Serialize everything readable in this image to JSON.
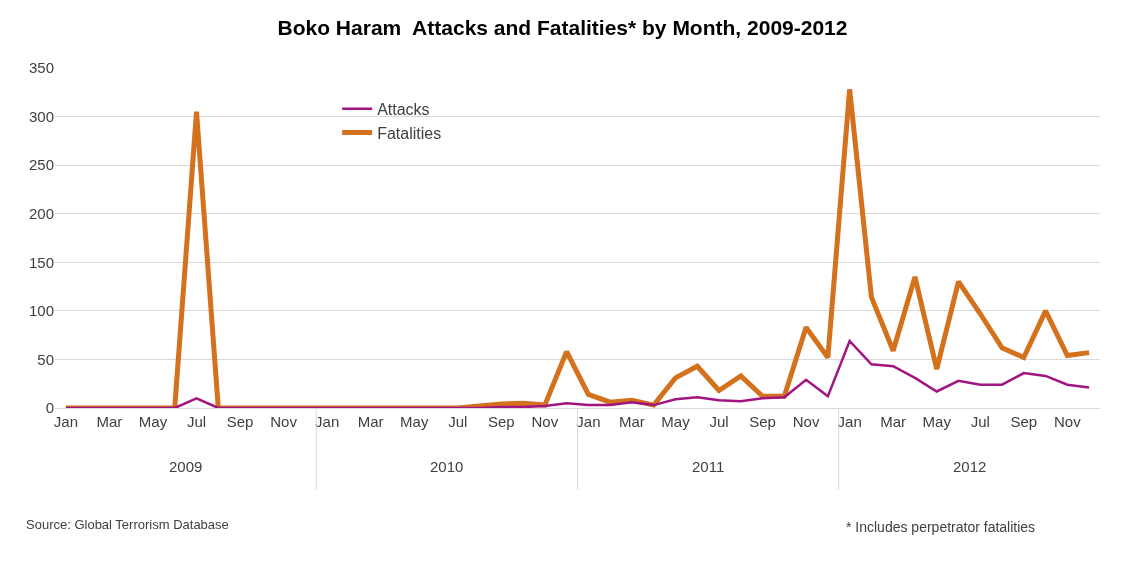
{
  "chart_data": {
    "type": "line",
    "title": "Boko Haram  Attacks and Fatalities* by Month, 2009-2012",
    "categories": [
      "Jan",
      null,
      "Mar",
      null,
      "May",
      null,
      "Jul",
      null,
      "Sep",
      null,
      "Nov",
      null,
      "Jan",
      null,
      "Mar",
      null,
      "May",
      null,
      "Jul",
      null,
      "Sep",
      null,
      "Nov",
      null,
      "Jan",
      null,
      "Mar",
      null,
      "May",
      null,
      "Jul",
      null,
      "Sep",
      null,
      "Nov",
      null,
      "Jan",
      null,
      "Mar",
      null,
      "May",
      null,
      "Jul",
      null,
      "Sep",
      null,
      "Nov",
      null
    ],
    "series": [
      {
        "name": "Attacks",
        "color": "#a0157f",
        "values": [
          0,
          0,
          0,
          0,
          0,
          0,
          10,
          0,
          0,
          0,
          0,
          0,
          0,
          0,
          0,
          0,
          0,
          0,
          0,
          0,
          1,
          1,
          2,
          5,
          3,
          3,
          6,
          3,
          9,
          11,
          8,
          7,
          10,
          11,
          29,
          12,
          69,
          45,
          43,
          31,
          17,
          28,
          24,
          24,
          36,
          33,
          24,
          21
        ]
      },
      {
        "name": "Fatalities",
        "color": "#d4711c",
        "values": [
          0,
          0,
          0,
          0,
          0,
          0,
          305,
          0,
          0,
          0,
          0,
          0,
          0,
          0,
          0,
          0,
          0,
          0,
          0,
          2,
          4,
          5,
          3,
          58,
          14,
          6,
          8,
          3,
          31,
          43,
          18,
          33,
          12,
          12,
          83,
          52,
          328,
          114,
          59,
          135,
          40,
          130,
          97,
          62,
          52,
          100,
          54,
          57
        ]
      }
    ],
    "ylim": [
      0,
      350
    ],
    "yticks": [
      0,
      50,
      100,
      150,
      200,
      250,
      300,
      350
    ],
    "grid": "y",
    "legend": "top left",
    "marker": "none",
    "line_style": "solid",
    "annotations": [
      "2009",
      "2010",
      "2011",
      "2012",
      "Source: Global Terrorism Database",
      "* Includes perpetrator fatalities"
    ]
  }
}
